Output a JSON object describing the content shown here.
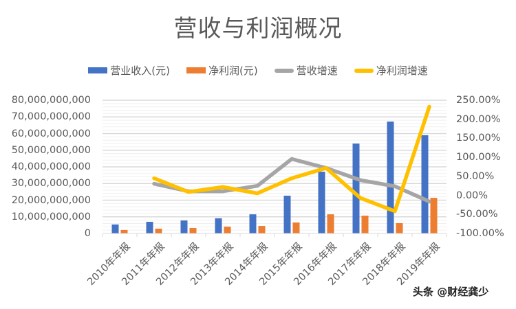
{
  "chart_data": {
    "type": "bar+line (combo, dual axis)",
    "title": "营收与利润概况",
    "legend_position": "top",
    "categories": [
      "2010年年报",
      "2011年年报",
      "2012年年报",
      "2013年年报",
      "2014年年报",
      "2015年年报",
      "2016年年报",
      "2017年年报",
      "2018年年报",
      "2019年年报"
    ],
    "series": [
      {
        "name": "营业收入(元)",
        "type": "bar",
        "axis": "left",
        "color": "#4472C4",
        "values": [
          5400000000,
          7000000000,
          7800000000,
          9100000000,
          11500000000,
          22700000000,
          37100000000,
          54000000000,
          67200000000,
          59000000000
        ]
      },
      {
        "name": "净利润(元)",
        "type": "bar",
        "axis": "left",
        "color": "#ED7D31",
        "values": [
          2100000000,
          2900000000,
          3300000000,
          4100000000,
          4500000000,
          6600000000,
          11500000000,
          10700000000,
          6200000000,
          21400000000
        ]
      },
      {
        "name": "营收增速",
        "type": "line",
        "axis": "right",
        "color": "#A5A5A5",
        "values": [
          null,
          0.307,
          0.108,
          0.108,
          0.25,
          0.957,
          0.72,
          0.4,
          0.24,
          -0.16
        ]
      },
      {
        "name": "净利润增速",
        "type": "line",
        "axis": "right",
        "color": "#FFC000",
        "values": [
          null,
          0.45,
          0.09,
          0.22,
          0.054,
          0.45,
          0.72,
          -0.07,
          -0.415,
          2.33
        ]
      }
    ],
    "ylabel_left": "",
    "ylabel_right": "",
    "xlabel": "",
    "ylim_left": [
      0,
      80000000000
    ],
    "ylim_right": [
      -1.0,
      2.5
    ],
    "yticks_left": [
      "0",
      "10,000,000,000",
      "20,000,000,000",
      "30,000,000,000",
      "40,000,000,000",
      "50,000,000,000",
      "60,000,000,000",
      "70,000,000,000",
      "80,000,000,000"
    ],
    "yticks_right": [
      "-100.00%",
      "-50.00%",
      "0.00%",
      "50.00%",
      "100.00%",
      "150.00%",
      "200.00%",
      "250.00%"
    ],
    "grid": true
  },
  "title": "营收与利润概况",
  "legend": [
    {
      "label": "营业收入(元)",
      "color": "#4472C4",
      "kind": "box"
    },
    {
      "label": "净利润(元)",
      "color": "#ED7D31",
      "kind": "box"
    },
    {
      "label": "营收增速",
      "color": "#A5A5A5",
      "kind": "line"
    },
    {
      "label": "净利润增速",
      "color": "#FFC000",
      "kind": "line"
    }
  ],
  "axes": {
    "left_ticks": [
      "80,000,000,000",
      "70,000,000,000",
      "60,000,000,000",
      "50,000,000,000",
      "40,000,000,000",
      "30,000,000,000",
      "20,000,000,000",
      "10,000,000,000",
      "0"
    ],
    "right_ticks": [
      "250.00%",
      "200.00%",
      "150.00%",
      "100.00%",
      "50.00%",
      "0.00%",
      "-50.00%",
      "-100.00%"
    ],
    "x_labels": [
      "2010年年报",
      "2011年年报",
      "2012年年报",
      "2013年年报",
      "2014年年报",
      "2015年年报",
      "2016年年报",
      "2017年年报",
      "2018年年报",
      "2019年年报"
    ]
  },
  "watermark": "头条 @财经龚少"
}
